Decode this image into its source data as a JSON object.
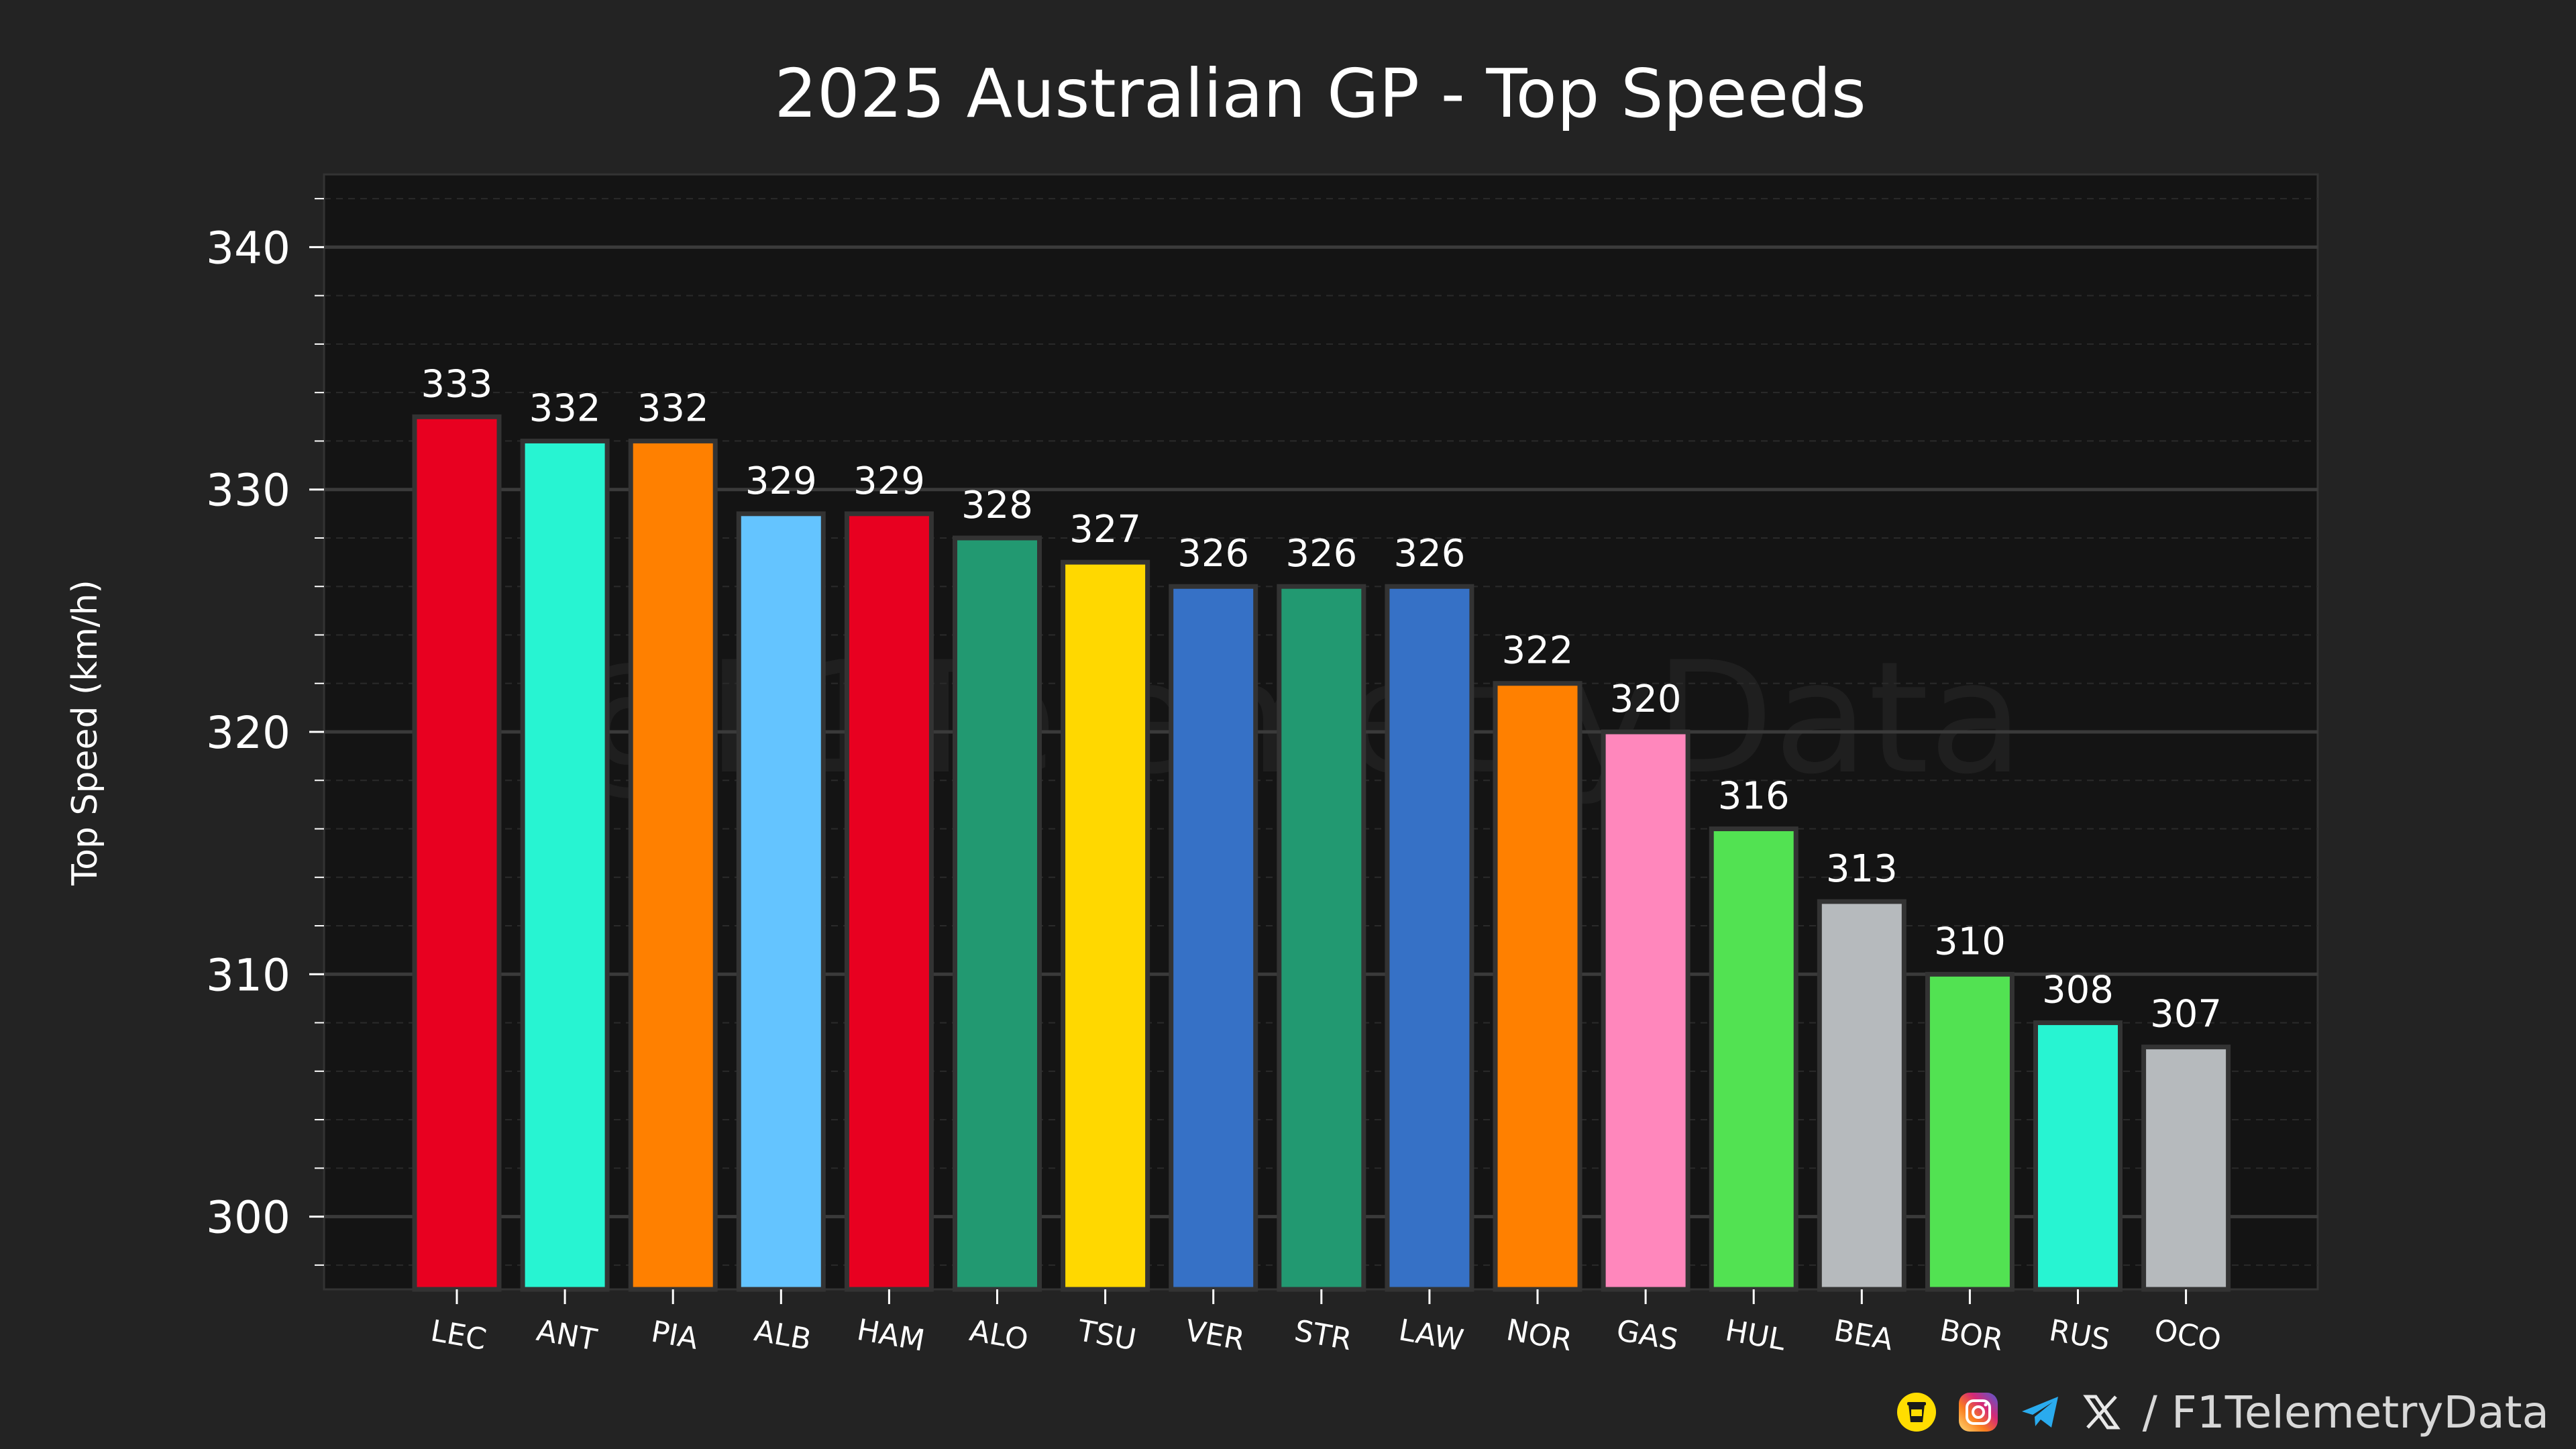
{
  "chart_data": {
    "type": "bar",
    "title": "2025 Australian GP - Top Speeds",
    "xlabel": "",
    "ylabel": "Top Speed (km/h)",
    "ylim": [
      297,
      343
    ],
    "yticks": [
      300,
      310,
      320,
      330,
      340
    ],
    "grid": true,
    "categories": [
      "LEC",
      "ANT",
      "PIA",
      "ALB",
      "HAM",
      "ALO",
      "TSU",
      "VER",
      "STR",
      "LAW",
      "NOR",
      "GAS",
      "HUL",
      "BEA",
      "BOR",
      "RUS",
      "OCO"
    ],
    "values": [
      333,
      332,
      332,
      329,
      329,
      328,
      327,
      326,
      326,
      326,
      322,
      320,
      316,
      313,
      310,
      308,
      307
    ],
    "colors": [
      "#E80020",
      "#27F4D2",
      "#FF8000",
      "#64C4FF",
      "#E80020",
      "#229971",
      "#FFD800",
      "#3671C6",
      "#229971",
      "#3671C6",
      "#FF8000",
      "#FF87BC",
      "#52E252",
      "#B6BABD",
      "#52E252",
      "#27F4D2",
      "#B6BABD"
    ],
    "watermark": "@F1TelemetryData"
  },
  "footer": {
    "handle": "/ F1TelemetryData",
    "icons": [
      "coffee-icon",
      "instagram-icon",
      "telegram-icon",
      "x-icon"
    ]
  },
  "colors": {
    "page_background": "#232323",
    "plot_background": "#141414",
    "text": "#ffffff"
  }
}
